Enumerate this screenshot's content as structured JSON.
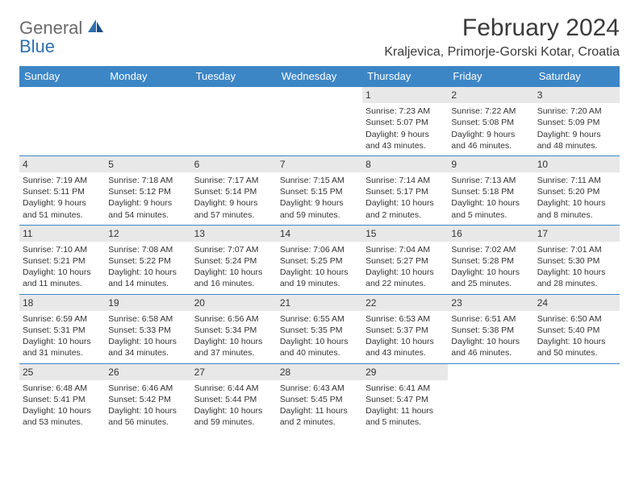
{
  "brand": {
    "name1": "General",
    "name2": "Blue"
  },
  "title": "February 2024",
  "location": "Kraljevica, Primorje-Gorski Kotar, Croatia",
  "colors": {
    "header_bg": "#3d86c6",
    "header_text": "#ffffff",
    "daynum_bg": "#e8e8e8",
    "border": "#3d86c6",
    "logo_gray": "#6a6a6a",
    "logo_blue": "#2f6fb0"
  },
  "day_headers": [
    "Sunday",
    "Monday",
    "Tuesday",
    "Wednesday",
    "Thursday",
    "Friday",
    "Saturday"
  ],
  "weeks": [
    [
      {
        "n": "",
        "sr": "",
        "ss": "",
        "dl": ""
      },
      {
        "n": "",
        "sr": "",
        "ss": "",
        "dl": ""
      },
      {
        "n": "",
        "sr": "",
        "ss": "",
        "dl": ""
      },
      {
        "n": "",
        "sr": "",
        "ss": "",
        "dl": ""
      },
      {
        "n": "1",
        "sr": "Sunrise: 7:23 AM",
        "ss": "Sunset: 5:07 PM",
        "dl": "Daylight: 9 hours and 43 minutes."
      },
      {
        "n": "2",
        "sr": "Sunrise: 7:22 AM",
        "ss": "Sunset: 5:08 PM",
        "dl": "Daylight: 9 hours and 46 minutes."
      },
      {
        "n": "3",
        "sr": "Sunrise: 7:20 AM",
        "ss": "Sunset: 5:09 PM",
        "dl": "Daylight: 9 hours and 48 minutes."
      }
    ],
    [
      {
        "n": "4",
        "sr": "Sunrise: 7:19 AM",
        "ss": "Sunset: 5:11 PM",
        "dl": "Daylight: 9 hours and 51 minutes."
      },
      {
        "n": "5",
        "sr": "Sunrise: 7:18 AM",
        "ss": "Sunset: 5:12 PM",
        "dl": "Daylight: 9 hours and 54 minutes."
      },
      {
        "n": "6",
        "sr": "Sunrise: 7:17 AM",
        "ss": "Sunset: 5:14 PM",
        "dl": "Daylight: 9 hours and 57 minutes."
      },
      {
        "n": "7",
        "sr": "Sunrise: 7:15 AM",
        "ss": "Sunset: 5:15 PM",
        "dl": "Daylight: 9 hours and 59 minutes."
      },
      {
        "n": "8",
        "sr": "Sunrise: 7:14 AM",
        "ss": "Sunset: 5:17 PM",
        "dl": "Daylight: 10 hours and 2 minutes."
      },
      {
        "n": "9",
        "sr": "Sunrise: 7:13 AM",
        "ss": "Sunset: 5:18 PM",
        "dl": "Daylight: 10 hours and 5 minutes."
      },
      {
        "n": "10",
        "sr": "Sunrise: 7:11 AM",
        "ss": "Sunset: 5:20 PM",
        "dl": "Daylight: 10 hours and 8 minutes."
      }
    ],
    [
      {
        "n": "11",
        "sr": "Sunrise: 7:10 AM",
        "ss": "Sunset: 5:21 PM",
        "dl": "Daylight: 10 hours and 11 minutes."
      },
      {
        "n": "12",
        "sr": "Sunrise: 7:08 AM",
        "ss": "Sunset: 5:22 PM",
        "dl": "Daylight: 10 hours and 14 minutes."
      },
      {
        "n": "13",
        "sr": "Sunrise: 7:07 AM",
        "ss": "Sunset: 5:24 PM",
        "dl": "Daylight: 10 hours and 16 minutes."
      },
      {
        "n": "14",
        "sr": "Sunrise: 7:06 AM",
        "ss": "Sunset: 5:25 PM",
        "dl": "Daylight: 10 hours and 19 minutes."
      },
      {
        "n": "15",
        "sr": "Sunrise: 7:04 AM",
        "ss": "Sunset: 5:27 PM",
        "dl": "Daylight: 10 hours and 22 minutes."
      },
      {
        "n": "16",
        "sr": "Sunrise: 7:02 AM",
        "ss": "Sunset: 5:28 PM",
        "dl": "Daylight: 10 hours and 25 minutes."
      },
      {
        "n": "17",
        "sr": "Sunrise: 7:01 AM",
        "ss": "Sunset: 5:30 PM",
        "dl": "Daylight: 10 hours and 28 minutes."
      }
    ],
    [
      {
        "n": "18",
        "sr": "Sunrise: 6:59 AM",
        "ss": "Sunset: 5:31 PM",
        "dl": "Daylight: 10 hours and 31 minutes."
      },
      {
        "n": "19",
        "sr": "Sunrise: 6:58 AM",
        "ss": "Sunset: 5:33 PM",
        "dl": "Daylight: 10 hours and 34 minutes."
      },
      {
        "n": "20",
        "sr": "Sunrise: 6:56 AM",
        "ss": "Sunset: 5:34 PM",
        "dl": "Daylight: 10 hours and 37 minutes."
      },
      {
        "n": "21",
        "sr": "Sunrise: 6:55 AM",
        "ss": "Sunset: 5:35 PM",
        "dl": "Daylight: 10 hours and 40 minutes."
      },
      {
        "n": "22",
        "sr": "Sunrise: 6:53 AM",
        "ss": "Sunset: 5:37 PM",
        "dl": "Daylight: 10 hours and 43 minutes."
      },
      {
        "n": "23",
        "sr": "Sunrise: 6:51 AM",
        "ss": "Sunset: 5:38 PM",
        "dl": "Daylight: 10 hours and 46 minutes."
      },
      {
        "n": "24",
        "sr": "Sunrise: 6:50 AM",
        "ss": "Sunset: 5:40 PM",
        "dl": "Daylight: 10 hours and 50 minutes."
      }
    ],
    [
      {
        "n": "25",
        "sr": "Sunrise: 6:48 AM",
        "ss": "Sunset: 5:41 PM",
        "dl": "Daylight: 10 hours and 53 minutes."
      },
      {
        "n": "26",
        "sr": "Sunrise: 6:46 AM",
        "ss": "Sunset: 5:42 PM",
        "dl": "Daylight: 10 hours and 56 minutes."
      },
      {
        "n": "27",
        "sr": "Sunrise: 6:44 AM",
        "ss": "Sunset: 5:44 PM",
        "dl": "Daylight: 10 hours and 59 minutes."
      },
      {
        "n": "28",
        "sr": "Sunrise: 6:43 AM",
        "ss": "Sunset: 5:45 PM",
        "dl": "Daylight: 11 hours and 2 minutes."
      },
      {
        "n": "29",
        "sr": "Sunrise: 6:41 AM",
        "ss": "Sunset: 5:47 PM",
        "dl": "Daylight: 11 hours and 5 minutes."
      },
      {
        "n": "",
        "sr": "",
        "ss": "",
        "dl": ""
      },
      {
        "n": "",
        "sr": "",
        "ss": "",
        "dl": ""
      }
    ]
  ]
}
